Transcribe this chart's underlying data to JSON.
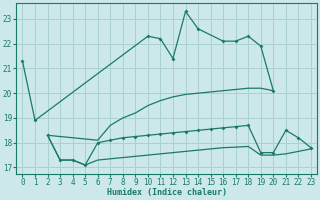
{
  "xlabel": "Humidex (Indice chaleur)",
  "series": {
    "main": {
      "x": [
        0,
        1,
        10,
        11,
        12,
        13,
        14,
        16,
        17,
        18,
        19,
        20
      ],
      "y": [
        21.3,
        18.9,
        22.3,
        22.2,
        21.4,
        23.3,
        22.6,
        22.1,
        22.1,
        22.3,
        21.9,
        20.1
      ]
    },
    "mid": {
      "x": [
        2,
        6,
        7,
        8,
        9,
        10,
        11,
        12,
        13,
        14,
        15,
        16,
        17,
        18,
        19,
        20
      ],
      "y": [
        18.3,
        18.1,
        18.7,
        19.0,
        19.2,
        19.5,
        19.7,
        19.85,
        19.95,
        20.0,
        20.05,
        20.1,
        20.15,
        20.2,
        20.2,
        20.1
      ]
    },
    "low1": {
      "x": [
        2,
        3,
        4,
        5,
        6,
        7,
        8,
        9,
        10,
        11,
        12,
        13,
        14,
        15,
        16,
        17,
        18,
        19,
        20,
        21,
        22,
        23
      ],
      "y": [
        18.3,
        17.3,
        17.3,
        17.1,
        18.0,
        18.1,
        18.2,
        18.25,
        18.3,
        18.35,
        18.4,
        18.45,
        18.5,
        18.55,
        18.6,
        18.65,
        18.7,
        17.6,
        17.6,
        18.5,
        18.2,
        17.8
      ]
    },
    "low2": {
      "x": [
        2,
        3,
        4,
        5,
        6,
        7,
        8,
        9,
        10,
        11,
        12,
        13,
        14,
        15,
        16,
        17,
        18,
        19,
        20,
        21,
        22,
        23
      ],
      "y": [
        18.3,
        17.3,
        17.3,
        17.1,
        17.3,
        17.35,
        17.4,
        17.45,
        17.5,
        17.55,
        17.6,
        17.65,
        17.7,
        17.75,
        17.8,
        17.82,
        17.85,
        17.5,
        17.5,
        17.55,
        17.65,
        17.75
      ]
    }
  },
  "color": "#1a7a6a",
  "bg_color": "#cce8e8",
  "grid_color": "#aad0d0",
  "ylim": [
    16.75,
    23.65
  ],
  "yticks": [
    17,
    18,
    19,
    20,
    21,
    22,
    23
  ],
  "xlim": [
    -0.5,
    23.5
  ],
  "xticks": [
    0,
    1,
    2,
    3,
    4,
    5,
    6,
    7,
    8,
    9,
    10,
    11,
    12,
    13,
    14,
    15,
    16,
    17,
    18,
    19,
    20,
    21,
    22,
    23
  ]
}
